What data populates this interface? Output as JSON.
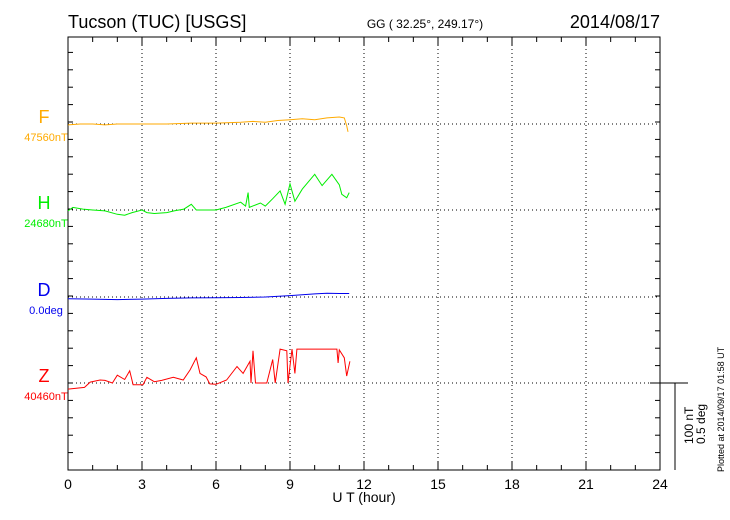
{
  "chart_data": {
    "type": "line",
    "title": "Tucson (TUC)  [USGS]",
    "subtitle": "GG ( 32.25°, 249.17°)",
    "date": "2014/08/17",
    "xlabel": "U T (hour)",
    "xlim": [
      0,
      24
    ],
    "xticks": [
      0,
      3,
      6,
      9,
      12,
      15,
      18,
      21,
      24
    ],
    "scale_bar": {
      "nT": "100 nT",
      "deg": "0.5 deg",
      "nT_value": 100,
      "deg_value": 0.5
    },
    "footer": "Plotted at 2014/09/17 01:58 UT",
    "series": [
      {
        "name": "F",
        "baseline_label": "47560nT",
        "unit": "nT",
        "color": "#ffaa00",
        "points": [
          [
            0,
            -1
          ],
          [
            0.5,
            0
          ],
          [
            1,
            0
          ],
          [
            1.5,
            -1
          ],
          [
            2,
            0
          ],
          [
            3,
            0
          ],
          [
            4,
            0
          ],
          [
            5,
            1
          ],
          [
            6,
            1
          ],
          [
            7,
            2
          ],
          [
            7.5,
            3
          ],
          [
            8,
            2
          ],
          [
            8.5,
            4
          ],
          [
            9,
            5
          ],
          [
            9.5,
            6
          ],
          [
            10,
            5
          ],
          [
            10.5,
            7
          ],
          [
            11,
            8
          ],
          [
            11.2,
            7
          ],
          [
            11.3,
            -2
          ],
          [
            11.35,
            -9
          ]
        ]
      },
      {
        "name": "H",
        "baseline_label": "24680nT",
        "unit": "nT",
        "color": "#00ee00",
        "points": [
          [
            0,
            -1
          ],
          [
            0.2,
            3
          ],
          [
            0.6,
            1
          ],
          [
            1,
            0
          ],
          [
            1.5,
            -1
          ],
          [
            2,
            -5
          ],
          [
            2.3,
            -6
          ],
          [
            2.6,
            -3
          ],
          [
            3,
            0
          ],
          [
            3.2,
            -3
          ],
          [
            3.5,
            -4
          ],
          [
            4,
            -3
          ],
          [
            4.3,
            -1
          ],
          [
            4.7,
            1
          ],
          [
            5,
            6.5
          ],
          [
            5.2,
            0
          ],
          [
            6,
            0
          ],
          [
            6.4,
            3
          ],
          [
            7,
            9
          ],
          [
            7.2,
            4.5
          ],
          [
            7.3,
            20
          ],
          [
            7.35,
            3
          ],
          [
            7.8,
            8
          ],
          [
            8,
            4.5
          ],
          [
            8.3,
            13
          ],
          [
            8.6,
            22
          ],
          [
            8.8,
            6.5
          ],
          [
            9,
            30
          ],
          [
            9.2,
            10
          ],
          [
            9.5,
            24
          ],
          [
            10,
            41
          ],
          [
            10.3,
            28
          ],
          [
            10.7,
            41
          ],
          [
            11,
            29
          ],
          [
            11.1,
            18
          ],
          [
            11.3,
            14
          ],
          [
            11.4,
            20
          ]
        ]
      },
      {
        "name": "D",
        "baseline_label": "0.0deg",
        "unit": "deg",
        "color": "#0000ee",
        "points": [
          [
            0,
            -0.01
          ],
          [
            1,
            -0.012
          ],
          [
            2,
            -0.015
          ],
          [
            3,
            -0.012
          ],
          [
            4,
            -0.008
          ],
          [
            5,
            -0.005
          ],
          [
            6,
            -0.004
          ],
          [
            7,
            -0.003
          ],
          [
            8,
            0
          ],
          [
            9,
            0.008
          ],
          [
            10,
            0.018
          ],
          [
            10.5,
            0.022
          ],
          [
            11,
            0.02
          ],
          [
            11.4,
            0.02
          ]
        ]
      },
      {
        "name": "Z",
        "baseline_label": "40460nT",
        "unit": "nT",
        "color": "#ff0000",
        "points": [
          [
            0,
            -7
          ],
          [
            0.67,
            -5
          ],
          [
            0.9,
            1
          ],
          [
            1.3,
            3.5
          ],
          [
            1.5,
            3
          ],
          [
            1.8,
            0
          ],
          [
            2,
            9
          ],
          [
            2.3,
            4
          ],
          [
            2.5,
            14
          ],
          [
            2.64,
            -2
          ],
          [
            3.04,
            -2
          ],
          [
            3.2,
            6.5
          ],
          [
            3.5,
            1.5
          ],
          [
            3.8,
            3
          ],
          [
            4.27,
            6.5
          ],
          [
            4.67,
            3.5
          ],
          [
            4.95,
            15
          ],
          [
            5.2,
            29
          ],
          [
            5.35,
            11
          ],
          [
            5.6,
            7
          ],
          [
            5.75,
            -1
          ],
          [
            6,
            -1.5
          ],
          [
            6.43,
            3.5
          ],
          [
            6.85,
            19
          ],
          [
            7.1,
            11
          ],
          [
            7.38,
            25
          ],
          [
            7.42,
            0
          ],
          [
            7.5,
            37
          ],
          [
            7.6,
            0
          ],
          [
            8.06,
            0
          ],
          [
            8.3,
            27
          ],
          [
            8.4,
            0
          ],
          [
            8.6,
            39
          ],
          [
            8.87,
            37
          ],
          [
            8.92,
            0
          ],
          [
            9.08,
            39
          ],
          [
            9.2,
            11
          ],
          [
            9.28,
            39
          ],
          [
            10.9,
            39
          ],
          [
            10.95,
            23
          ],
          [
            11.0,
            38
          ],
          [
            11.2,
            29
          ],
          [
            11.3,
            8
          ],
          [
            11.43,
            25
          ]
        ]
      }
    ]
  }
}
